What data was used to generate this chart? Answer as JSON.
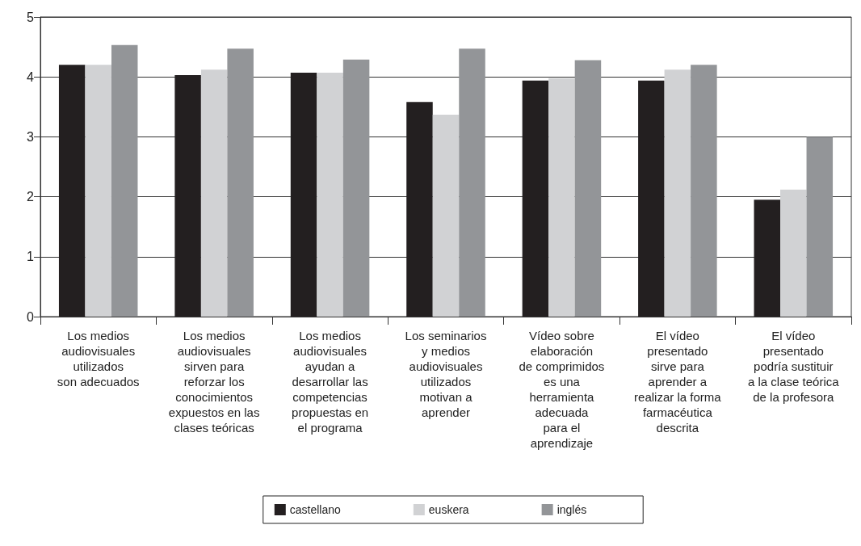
{
  "chart_data": {
    "type": "bar",
    "categories": [
      "Los medios\naudiovisuales\nutilizados\nson adecuados",
      "Los medios\naudiovisuales\nsirven para\nreforzar los\nconocimientos\nexpuestos en las\nclases teóricas",
      "Los medios\naudiovisuales\nayudan a\ndesarrollar las\ncompetencias\npropuestas en\nel programa",
      "Los seminarios\ny medios\naudiovisuales\nutilizados\nmotivan a\naprender",
      "Vídeo sobre\nelaboración\nde comprimidos\nes una\nherramienta\nadecuada\npara el\naprendizaje",
      "El vídeo\npresentado\nsirve para\naprender a\nrealizar la forma\nfarmacéutica\ndescrita",
      "El vídeo\npresentado\npodría sustituir\na la clase teórica\nde la profesora"
    ],
    "series": [
      {
        "name": "castellano",
        "color": "#231f20",
        "values": [
          4.2,
          4.03,
          4.07,
          3.58,
          3.94,
          3.94,
          1.95
        ]
      },
      {
        "name": "euskera",
        "color": "#d1d2d4",
        "values": [
          4.2,
          4.12,
          4.07,
          3.37,
          3.98,
          4.12,
          2.12
        ]
      },
      {
        "name": "inglés",
        "color": "#939598",
        "values": [
          4.53,
          4.47,
          4.29,
          4.47,
          4.28,
          4.2,
          3.0
        ]
      }
    ],
    "ylim": [
      0,
      5
    ],
    "yticks": [
      0,
      1,
      2,
      3,
      4,
      5
    ],
    "grid": "y",
    "legend": "bottom"
  }
}
